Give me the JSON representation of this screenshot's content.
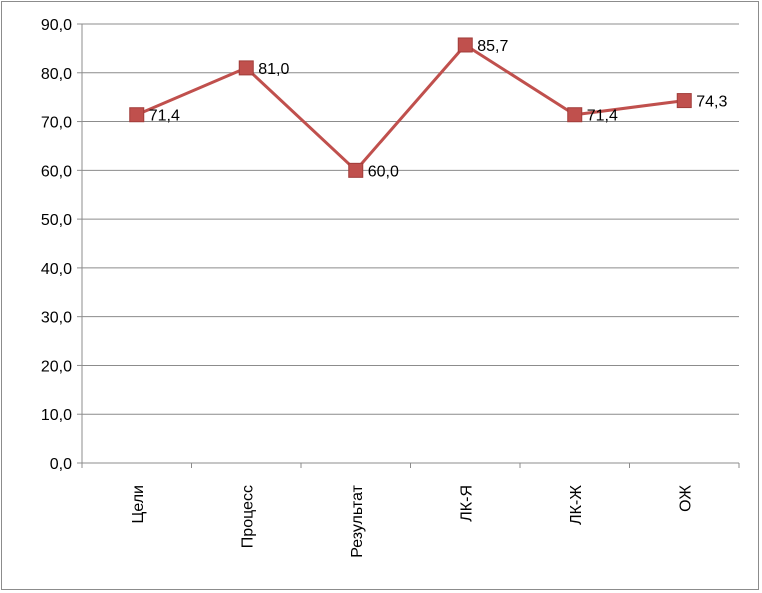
{
  "chart_data": {
    "type": "line",
    "categories": [
      "Цели",
      "Процесс",
      "Результат",
      "ЛК-Я",
      "ЛК-Ж",
      "ОЖ"
    ],
    "series": [
      {
        "values": [
          71.4,
          81.0,
          60.0,
          85.7,
          71.4,
          74.3
        ],
        "labels": [
          "71,4",
          "81,0",
          "60,0",
          "85,7",
          "71,4",
          "74,3"
        ],
        "color": "#c0504d",
        "marker": "square"
      }
    ],
    "y_ticks": [
      "0,0",
      "10,0",
      "20,0",
      "30,0",
      "40,0",
      "50,0",
      "60,0",
      "70,0",
      "80,0",
      "90,0"
    ],
    "ylim": [
      0,
      90
    ],
    "title": "",
    "xlabel": "",
    "ylabel": "",
    "grid": true,
    "legend": "none",
    "x_label_orientation": "vertical"
  }
}
